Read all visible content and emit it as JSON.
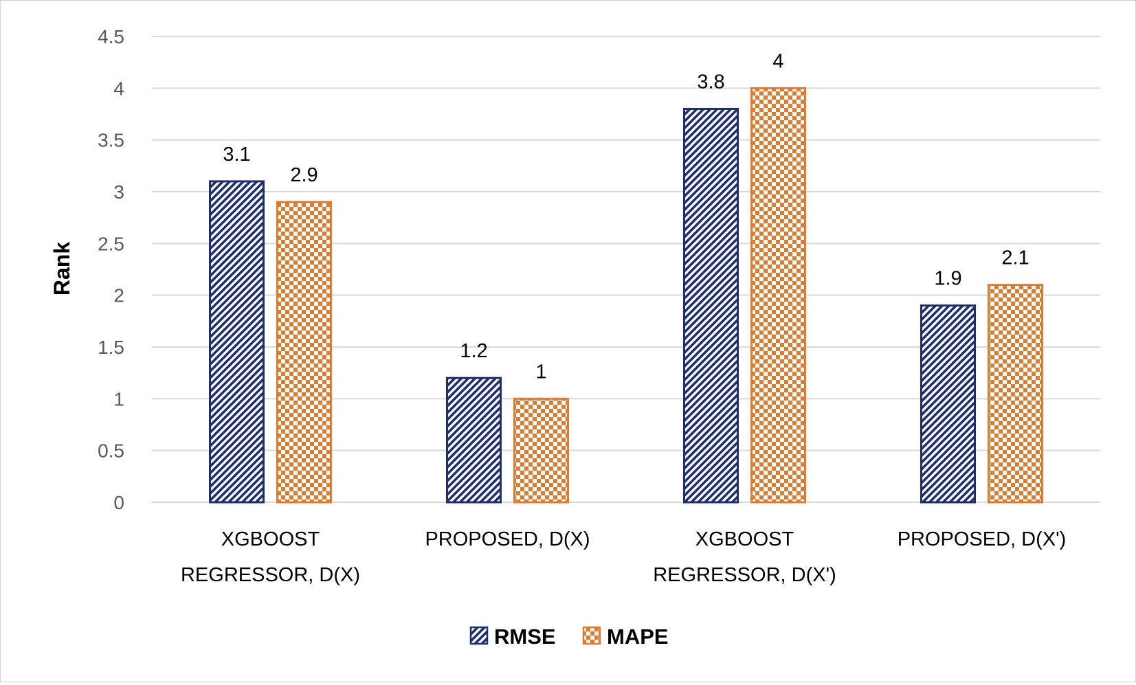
{
  "chart_data": {
    "type": "bar",
    "title": "",
    "xlabel": "",
    "ylabel": "Rank",
    "ylim": [
      0,
      4.5
    ],
    "yticks": [
      "0",
      "0.5",
      "1",
      "1.5",
      "2",
      "2.5",
      "3",
      "3.5",
      "4",
      "4.5"
    ],
    "categories": [
      [
        "XGBOOST",
        "REGRESSOR, D(X)"
      ],
      [
        "PROPOSED,  D(X)"
      ],
      [
        "XGBOOST",
        "REGRESSOR, D(X')"
      ],
      [
        "PROPOSED, D(X')"
      ]
    ],
    "series": [
      {
        "name": "RMSE",
        "values": [
          3.1,
          1.2,
          3.8,
          1.9
        ],
        "labels": [
          "3.1",
          "1.2",
          "3.8",
          "1.9"
        ],
        "color": "#1f2f6e",
        "pattern": "diagonal-stripes"
      },
      {
        "name": "MAPE",
        "values": [
          2.9,
          1,
          4,
          2.1
        ],
        "labels": [
          "2.9",
          "1",
          "4",
          "2.1"
        ],
        "color": "#e07b2e",
        "pattern": "checker"
      }
    ],
    "grid": true,
    "legend": "bottom"
  }
}
